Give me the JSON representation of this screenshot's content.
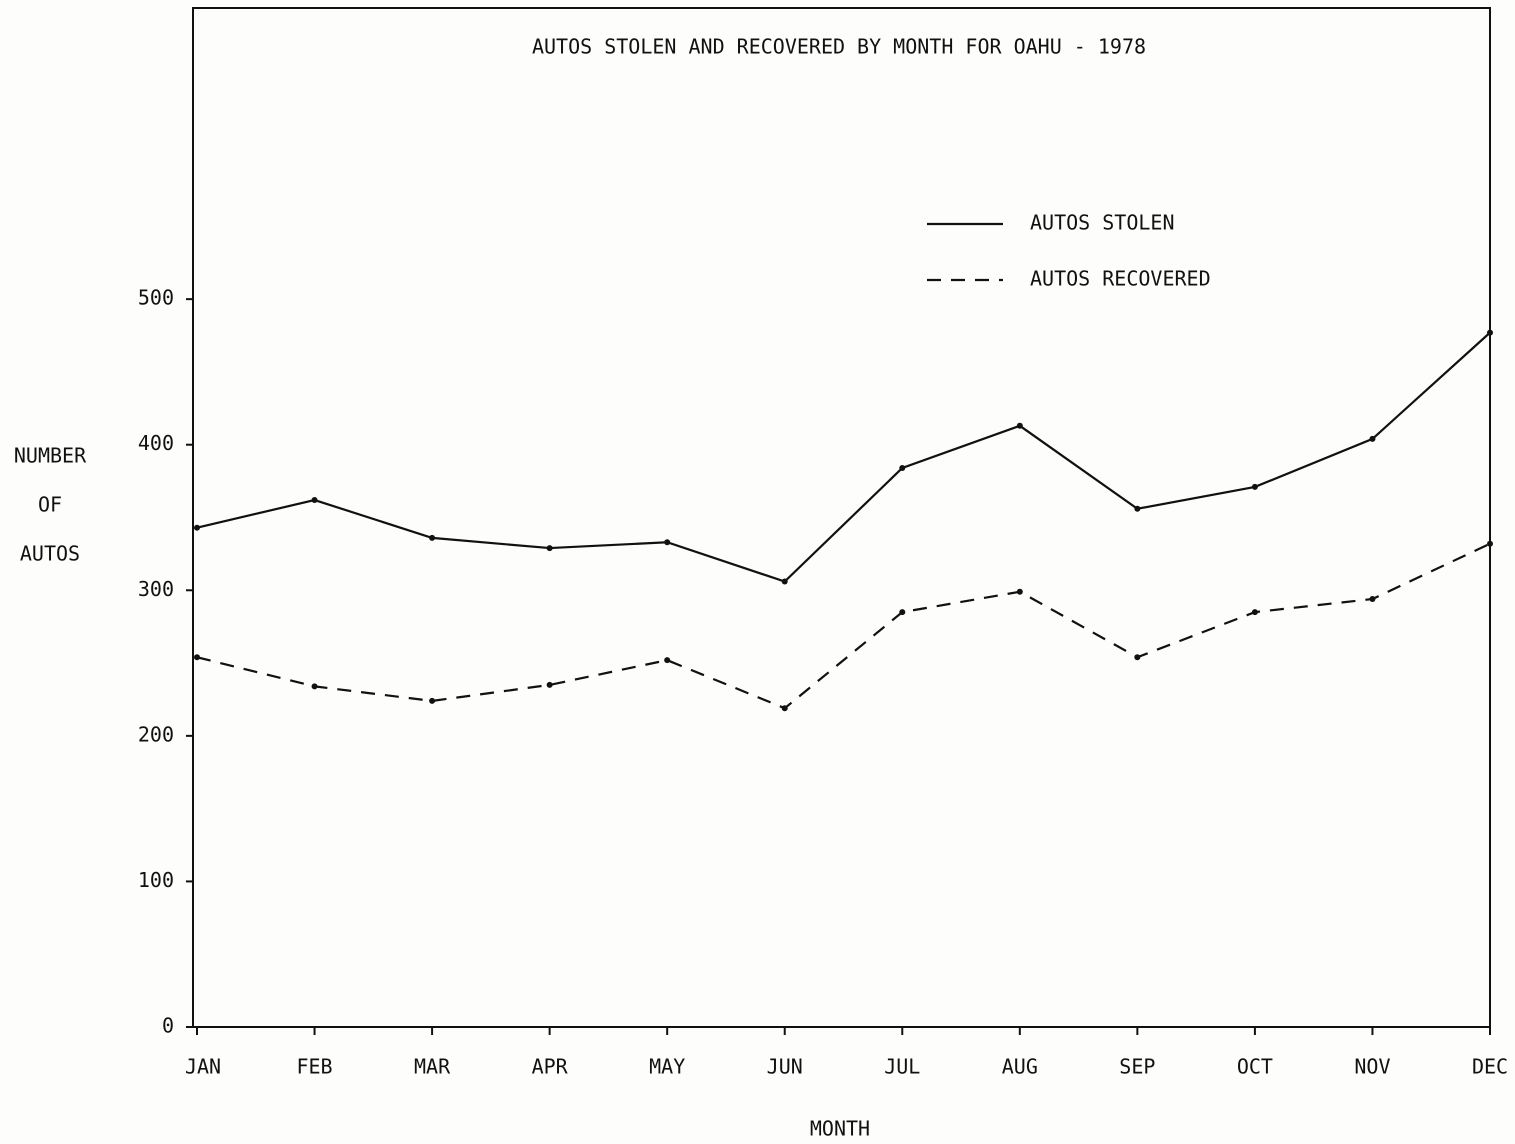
{
  "chart_data": {
    "type": "line",
    "title": "AUTOS STOLEN AND RECOVERED BY MONTH FOR OAHU - 1978",
    "x_label": "MONTH",
    "y_label": [
      "NUMBER",
      "OF",
      "AUTOS"
    ],
    "categories": [
      "JAN",
      "FEB",
      "MAR",
      "APR",
      "MAY",
      "JUN",
      "JUL",
      "AUG",
      "SEP",
      "OCT",
      "NOV",
      "DEC"
    ],
    "series": [
      {
        "name": "AUTOS STOLEN",
        "color": "#111111",
        "line_style": "solid",
        "values": [
          343,
          362,
          336,
          329,
          333,
          306,
          384,
          413,
          356,
          371,
          404,
          477
        ]
      },
      {
        "name": "AUTOS RECOVERED",
        "color": "#111111",
        "line_style": "dashed",
        "values": [
          254,
          234,
          224,
          235,
          252,
          219,
          285,
          299,
          254,
          285,
          294,
          332
        ]
      }
    ],
    "ylim": [
      0,
      700
    ],
    "yticks": [
      0,
      100,
      200,
      300,
      400,
      500
    ],
    "grid": false,
    "legend": "upper-right"
  }
}
